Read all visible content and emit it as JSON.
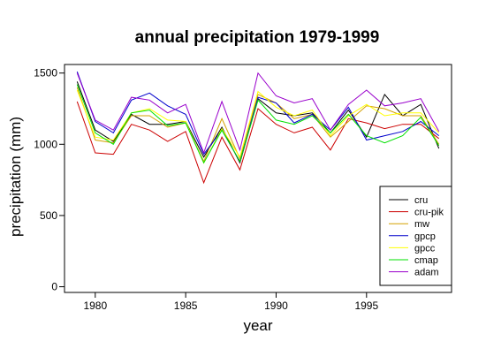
{
  "chart_data": {
    "type": "line",
    "title": "annual precipitation 1979-1999",
    "xlabel": "year",
    "ylabel": "precipitation (mm)",
    "x": [
      1979,
      1980,
      1981,
      1982,
      1983,
      1984,
      1985,
      1986,
      1987,
      1988,
      1989,
      1990,
      1991,
      1992,
      1993,
      1994,
      1995,
      1996,
      1997,
      1998,
      1999
    ],
    "xlim": [
      1978.3,
      1999.7
    ],
    "ylim": [
      -40,
      1560
    ],
    "xticks": [
      1980,
      1985,
      1990,
      1995
    ],
    "yticks": [
      0,
      500,
      1000,
      1500
    ],
    "grid": false,
    "legend_position": "bottom-right",
    "series": [
      {
        "name": "cru",
        "color": "#000000",
        "values": [
          1440,
          1100,
          1020,
          1210,
          1140,
          1140,
          1160,
          910,
          1120,
          870,
          1320,
          1220,
          1200,
          1220,
          1080,
          1240,
          1050,
          1350,
          1200,
          1280,
          970
        ]
      },
      {
        "name": "cru-pik",
        "color": "#cc0000",
        "values": [
          1300,
          940,
          930,
          1140,
          1100,
          1020,
          1090,
          730,
          1050,
          820,
          1250,
          1140,
          1080,
          1120,
          960,
          1180,
          1150,
          1110,
          1140,
          1140,
          1040
        ]
      },
      {
        "name": "mw",
        "color": "#d4a000",
        "values": [
          1400,
          1030,
          1010,
          1200,
          1200,
          1120,
          1150,
          880,
          1180,
          900,
          1350,
          1290,
          1180,
          1210,
          1050,
          1160,
          1270,
          1250,
          1200,
          1200,
          1000
        ]
      },
      {
        "name": "gpcp",
        "color": "#0000cc",
        "values": [
          1510,
          1160,
          1080,
          1310,
          1360,
          1270,
          1210,
          930,
          1100,
          880,
          1330,
          1290,
          1150,
          1210,
          1100,
          1260,
          1030,
          1060,
          1090,
          1160,
          1060
        ]
      },
      {
        "name": "gpcc",
        "color": "#ffff00",
        "values": [
          1380,
          1050,
          1030,
          1220,
          1250,
          1170,
          1160,
          870,
          1110,
          910,
          1370,
          1260,
          1200,
          1240,
          1060,
          1200,
          1280,
          1200,
          1220,
          1220,
          1080
        ]
      },
      {
        "name": "cmap",
        "color": "#00e000",
        "values": [
          1420,
          1080,
          1000,
          1220,
          1240,
          1130,
          1150,
          870,
          1100,
          880,
          1310,
          1170,
          1140,
          1200,
          1080,
          1210,
          1060,
          1010,
          1060,
          1190,
          990
        ]
      },
      {
        "name": "adam",
        "color": "#9900cc",
        "values": [
          1500,
          1170,
          1100,
          1330,
          1310,
          1220,
          1280,
          940,
          1300,
          960,
          1500,
          1340,
          1290,
          1320,
          1100,
          1280,
          1380,
          1270,
          1290,
          1320,
          1090
        ]
      }
    ]
  }
}
